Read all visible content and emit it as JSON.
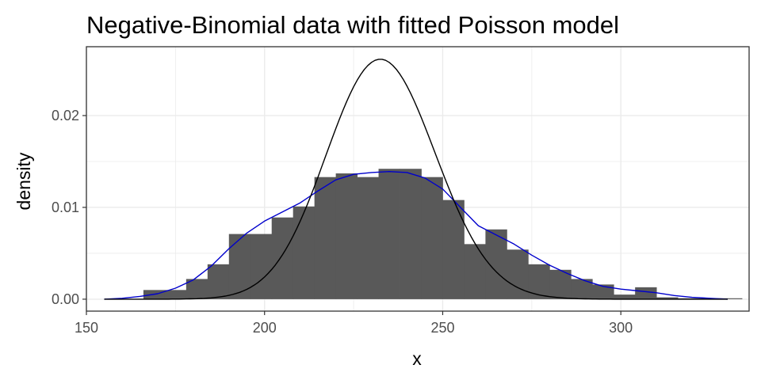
{
  "chart_data": {
    "type": "bar",
    "title": "Negative-Binomial data with fitted Poisson model",
    "xlabel": "x",
    "ylabel": "density",
    "xlim": [
      150,
      336
    ],
    "ylim": [
      -0.0013,
      0.0275
    ],
    "x_ticks": [
      150,
      200,
      250,
      300
    ],
    "x_tick_labels": [
      "150",
      "200",
      "250",
      "300"
    ],
    "y_ticks": [
      0.0,
      0.01,
      0.02
    ],
    "y_tick_labels": [
      "0.00",
      "0.01",
      "0.02"
    ],
    "grid": true,
    "legend": "none",
    "histogram": {
      "color": "#595959",
      "bins": [
        {
          "x0": 166,
          "x1": 172,
          "density": 0.001
        },
        {
          "x0": 172,
          "x1": 178,
          "density": 0.001
        },
        {
          "x0": 178,
          "x1": 184,
          "density": 0.0022
        },
        {
          "x0": 184,
          "x1": 190,
          "density": 0.0038
        },
        {
          "x0": 190,
          "x1": 196,
          "density": 0.0071
        },
        {
          "x0": 196,
          "x1": 202,
          "density": 0.0071
        },
        {
          "x0": 202,
          "x1": 208,
          "density": 0.0089
        },
        {
          "x0": 208,
          "x1": 214,
          "density": 0.0101
        },
        {
          "x0": 214,
          "x1": 220,
          "density": 0.0133
        },
        {
          "x0": 220,
          "x1": 226,
          "density": 0.0137
        },
        {
          "x0": 226,
          "x1": 232,
          "density": 0.0133
        },
        {
          "x0": 232,
          "x1": 238,
          "density": 0.0142
        },
        {
          "x0": 238,
          "x1": 244,
          "density": 0.0142
        },
        {
          "x0": 244,
          "x1": 250,
          "density": 0.0133
        },
        {
          "x0": 250,
          "x1": 256,
          "density": 0.0108
        },
        {
          "x0": 256,
          "x1": 262,
          "density": 0.006
        },
        {
          "x0": 262,
          "x1": 268,
          "density": 0.0076
        },
        {
          "x0": 268,
          "x1": 274,
          "density": 0.0054
        },
        {
          "x0": 274,
          "x1": 280,
          "density": 0.0038
        },
        {
          "x0": 280,
          "x1": 286,
          "density": 0.0032
        },
        {
          "x0": 286,
          "x1": 292,
          "density": 0.0022
        },
        {
          "x0": 292,
          "x1": 298,
          "density": 0.0016
        },
        {
          "x0": 298,
          "x1": 304,
          "density": 0.0005
        },
        {
          "x0": 304,
          "x1": 310,
          "density": 0.0013
        },
        {
          "x0": 310,
          "x1": 316,
          "density": 0.0002
        },
        {
          "x0": 316,
          "x1": 322,
          "density": 0.0001
        },
        {
          "x0": 322,
          "x1": 328,
          "density": 0.0001
        },
        {
          "x0": 328,
          "x1": 334,
          "density": 0.0001
        }
      ]
    },
    "series": [
      {
        "color": "#0000cc",
        "type": "line",
        "x": [
          155,
          160,
          165,
          170,
          175,
          180,
          185,
          190,
          195,
          200,
          205,
          210,
          215,
          220,
          225,
          230,
          235,
          240,
          245,
          250,
          255,
          260,
          265,
          270,
          275,
          280,
          285,
          290,
          295,
          300,
          305,
          310,
          315,
          320,
          325,
          330
        ],
        "y": [
          0.0,
          0.0001,
          0.0003,
          0.0006,
          0.0012,
          0.0021,
          0.0036,
          0.0055,
          0.0072,
          0.0085,
          0.0095,
          0.0105,
          0.0118,
          0.013,
          0.0136,
          0.0138,
          0.0139,
          0.0138,
          0.0132,
          0.012,
          0.01,
          0.008,
          0.007,
          0.006,
          0.0048,
          0.0037,
          0.0028,
          0.002,
          0.0014,
          0.0011,
          0.0009,
          0.0007,
          0.0004,
          0.0002,
          0.0001,
          0.0
        ]
      },
      {
        "color": "#000000",
        "type": "line",
        "poisson_lambda": 233
      }
    ]
  }
}
